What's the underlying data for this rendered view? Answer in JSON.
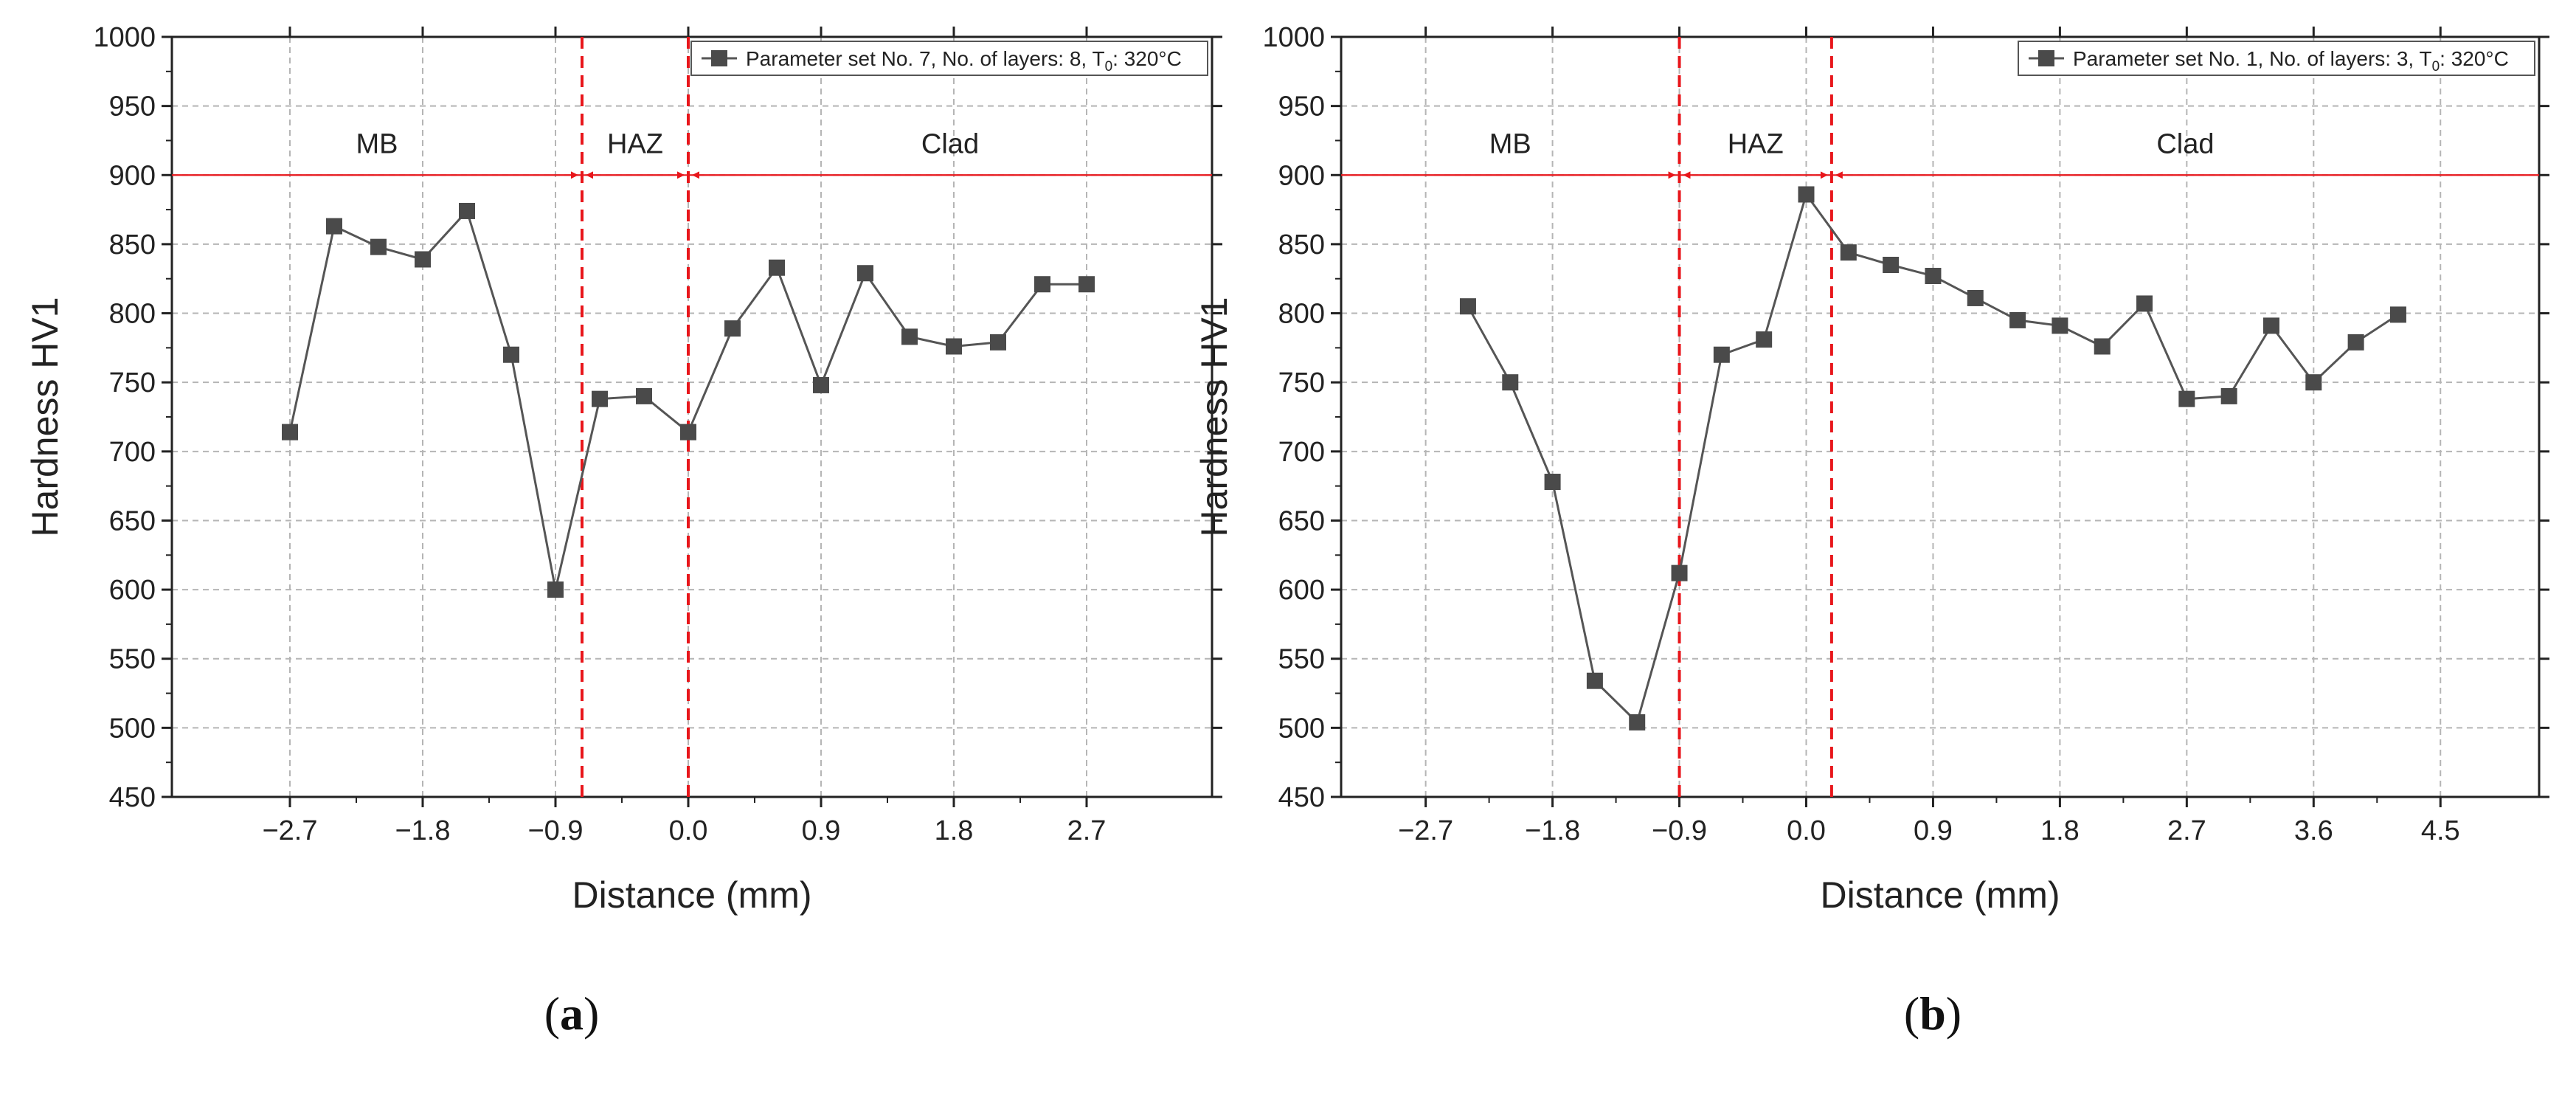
{
  "chart_data": [
    {
      "type": "line",
      "panel_label": "(a)",
      "panel_letter": "a",
      "xlabel": "Distance (mm)",
      "ylabel": "Hardness HV1",
      "xlim": [
        -3.5,
        3.55
      ],
      "ylim": [
        450,
        1000
      ],
      "xticks": [
        -2.7,
        -1.8,
        -0.9,
        0.0,
        0.9,
        1.8,
        2.7
      ],
      "xtick_labels": [
        "−2.7",
        "−1.8",
        "−0.9",
        "0.0",
        "0.9",
        "1.8",
        "2.7"
      ],
      "yticks": [
        450,
        500,
        550,
        600,
        650,
        700,
        750,
        800,
        850,
        900,
        950,
        1000
      ],
      "grid": true,
      "legend": {
        "position": "top-right",
        "text_before_sub": "Parameter set No. 7, No. of layers: 8, T",
        "subscript": "0",
        "text_after_sub": ": 320°C"
      },
      "series": [
        {
          "name": "Parameter set No. 7, No. of layers: 8, T0: 320°C",
          "x": [
            -2.7,
            -2.4,
            -2.1,
            -1.8,
            -1.5,
            -1.2,
            -0.9,
            -0.6,
            -0.3,
            0.0,
            0.3,
            0.6,
            0.9,
            1.2,
            1.5,
            1.8,
            2.1,
            2.4,
            2.7
          ],
          "y": [
            714,
            863,
            848,
            839,
            874,
            770,
            600,
            738,
            740,
            714,
            789,
            833,
            748,
            829,
            783,
            776,
            779,
            821,
            821
          ]
        }
      ],
      "boundaries": [
        -0.72,
        0.0
      ],
      "reference_line_y": 900,
      "zones": [
        {
          "label": "MB",
          "x_from": -3.5,
          "x_to": -0.72
        },
        {
          "label": "HAZ",
          "x_from": -0.72,
          "x_to": 0.0
        },
        {
          "label": "Clad",
          "x_from": 0.0,
          "x_to": 3.55
        }
      ]
    },
    {
      "type": "line",
      "panel_label": "(b)",
      "panel_letter": "b",
      "xlabel": "Distance (mm)",
      "ylabel": "Hardness HV1",
      "xlim": [
        -3.3,
        5.2
      ],
      "ylim": [
        450,
        1000
      ],
      "xticks": [
        -2.7,
        -1.8,
        -0.9,
        0.0,
        0.9,
        1.8,
        2.7,
        3.6,
        4.5
      ],
      "xtick_labels": [
        "−2.7",
        "−1.8",
        "−0.9",
        "0.0",
        "0.9",
        "1.8",
        "2.7",
        "3.6",
        "4.5"
      ],
      "yticks": [
        450,
        500,
        550,
        600,
        650,
        700,
        750,
        800,
        850,
        900,
        950,
        1000
      ],
      "grid": true,
      "legend": {
        "position": "top-right",
        "text_before_sub": "Parameter set No. 1, No. of layers: 3, T",
        "subscript": "0",
        "text_after_sub": ": 320°C"
      },
      "series": [
        {
          "name": "Parameter set No. 1, No. of layers: 3, T0: 320°C",
          "x": [
            -2.4,
            -2.1,
            -1.8,
            -1.5,
            -1.2,
            -0.9,
            -0.6,
            -0.3,
            0.0,
            0.3,
            0.6,
            0.9,
            1.2,
            1.5,
            1.8,
            2.1,
            2.4,
            2.7,
            3.0,
            3.3,
            3.6,
            3.9,
            4.2
          ],
          "y": [
            805,
            750,
            678,
            534,
            504,
            612,
            770,
            781,
            886,
            844,
            835,
            827,
            811,
            795,
            791,
            776,
            807,
            738,
            740,
            791,
            750,
            779,
            799
          ]
        }
      ],
      "boundaries": [
        -0.9,
        0.18
      ],
      "reference_line_y": 900,
      "zones": [
        {
          "label": "MB",
          "x_from": -3.3,
          "x_to": -0.9
        },
        {
          "label": "HAZ",
          "x_from": -0.9,
          "x_to": 0.18
        },
        {
          "label": "Clad",
          "x_from": 0.18,
          "x_to": 5.2
        }
      ]
    }
  ],
  "colors": {
    "series": "#555555",
    "marker": "#4a4a4a",
    "boundary": "#e8161b",
    "grid": "#b5b5b5",
    "axis": "#222222"
  }
}
